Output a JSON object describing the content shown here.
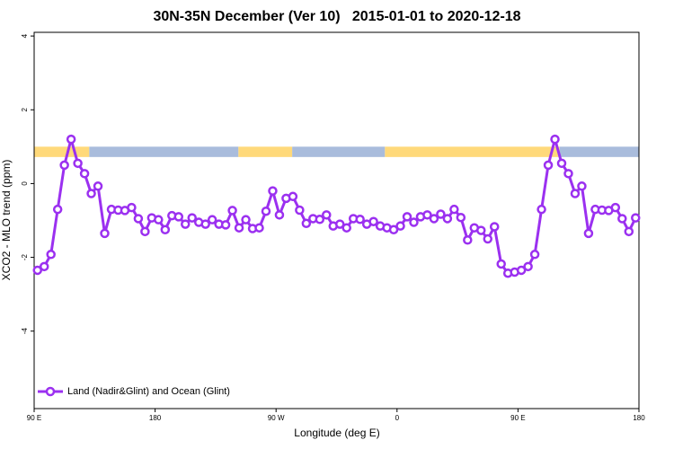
{
  "chart_data": {
    "type": "line",
    "title": "30N-35N December (Ver 10)   2015-01-01 to 2020-12-18",
    "x_label": "Longitude (deg E)",
    "y_label": "XCO2 - MLO trend (ppm)",
    "xlim": [
      90,
      540
    ],
    "ylim": [
      -6.1,
      4.1
    ],
    "xticks": [
      {
        "value": 90,
        "label": "90 E"
      },
      {
        "value": 180,
        "label": "180"
      },
      {
        "value": 270,
        "label": "90 W"
      },
      {
        "value": 360,
        "label": "0"
      },
      {
        "value": 450,
        "label": "90 E"
      },
      {
        "value": 540,
        "label": "180"
      }
    ],
    "yticks": [
      -4,
      -2,
      0,
      2,
      4
    ],
    "legend": "bottom-left",
    "band": {
      "ylim": [
        0.72,
        1.0
      ],
      "segments": [
        {
          "from": 90,
          "to": 131,
          "color": "#ffd97a"
        },
        {
          "from": 131,
          "to": 242,
          "color": "#a9bcdc"
        },
        {
          "from": 242,
          "to": 282,
          "color": "#ffd97a"
        },
        {
          "from": 282,
          "to": 351,
          "color": "#a9bcdc"
        },
        {
          "from": 351,
          "to": 481,
          "color": "#ffd97a"
        },
        {
          "from": 481,
          "to": 540,
          "color": "#a9bcdc"
        }
      ]
    },
    "x": [
      92.5,
      97.5,
      102.5,
      107.5,
      112.5,
      117.5,
      122.5,
      127.5,
      132.5,
      137.5,
      142.5,
      147.5,
      152.5,
      157.5,
      162.5,
      167.5,
      172.5,
      177.5,
      182.5,
      187.5,
      192.5,
      197.5,
      202.5,
      207.5,
      212.5,
      217.5,
      222.5,
      227.5,
      232.5,
      237.5,
      242.5,
      247.5,
      252.5,
      257.5,
      262.5,
      267.5,
      272.5,
      277.5,
      282.5,
      287.5,
      292.5,
      297.5,
      302.5,
      307.5,
      312.5,
      317.5,
      322.5,
      327.5,
      332.5,
      337.5,
      342.5,
      347.5,
      352.5,
      357.5,
      362.5,
      367.5,
      372.5,
      377.5,
      382.5,
      387.5,
      392.5,
      397.5,
      402.5,
      407.5,
      412.5,
      417.5,
      422.5,
      427.5,
      432.5,
      437.5,
      442.5,
      447.5,
      452.5,
      457.5,
      462.5,
      467.5,
      472.5,
      477.5,
      482.5,
      487.5,
      492.5,
      497.5,
      502.5,
      507.5,
      512.5,
      517.5,
      522.5,
      527.5,
      532.5,
      537.5
    ],
    "series": [
      {
        "name": "Land (Nadir&Glint) and Ocean (Glint)",
        "color": "#9b30f0",
        "values": [
          -2.35,
          -2.25,
          -1.92,
          -0.7,
          0.5,
          1.2,
          0.55,
          0.27,
          -0.27,
          -0.07,
          -1.35,
          -0.7,
          -0.72,
          -0.73,
          -0.65,
          -0.95,
          -1.3,
          -0.93,
          -0.98,
          -1.25,
          -0.87,
          -0.9,
          -1.1,
          -0.93,
          -1.05,
          -1.1,
          -0.98,
          -1.1,
          -1.12,
          -0.73,
          -1.2,
          -0.98,
          -1.22,
          -1.2,
          -0.75,
          -0.2,
          -0.85,
          -0.4,
          -0.35,
          -0.72,
          -1.08,
          -0.95,
          -0.97,
          -0.85,
          -1.15,
          -1.1,
          -1.2,
          -0.95,
          -0.97,
          -1.1,
          -1.03,
          -1.15,
          -1.2,
          -1.25,
          -1.15,
          -0.9,
          -1.05,
          -0.9,
          -0.85,
          -0.95,
          -0.83,
          -0.95,
          -0.7,
          -0.92,
          -1.53,
          -1.2,
          -1.27,
          -1.5,
          -1.17,
          -2.18,
          -2.43,
          -2.4,
          -2.35,
          -2.25,
          -1.92,
          -0.7,
          0.5,
          1.2,
          0.55,
          0.27,
          -0.27,
          -0.07,
          -1.35,
          -0.7,
          -0.72,
          -0.73,
          -0.65,
          -0.95,
          -1.3,
          -0.93
        ]
      }
    ]
  }
}
